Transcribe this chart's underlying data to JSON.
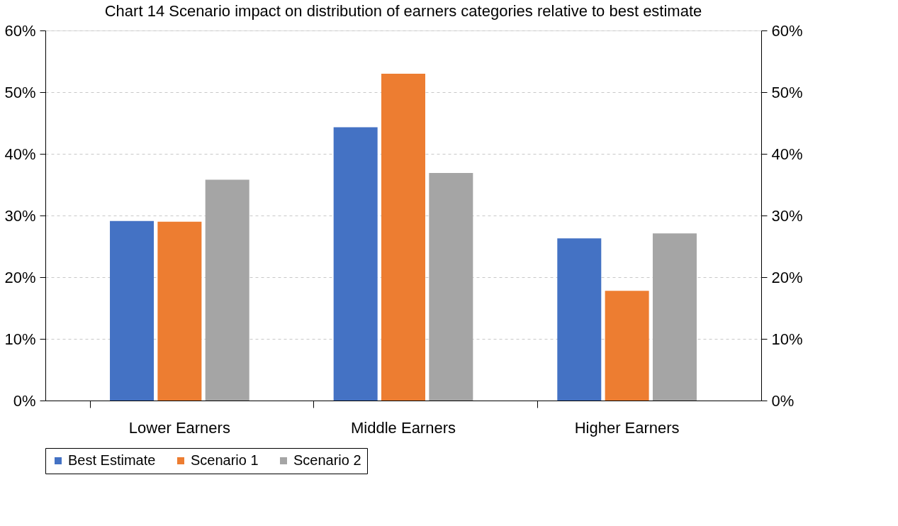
{
  "chart_data": {
    "type": "bar",
    "title": "Chart 14     Scenario impact on distribution of earners categories relative to best estimate",
    "categories": [
      "Lower Earners",
      "Middle Earners",
      "Higher Earners"
    ],
    "series": [
      {
        "name": "Best Estimate",
        "color": "#4472c4",
        "values": [
          29.1,
          44.3,
          26.3
        ]
      },
      {
        "name": "Scenario 1",
        "color": "#ed7d31",
        "values": [
          29.0,
          53.0,
          17.8
        ]
      },
      {
        "name": "Scenario 2",
        "color": "#a5a5a5",
        "values": [
          35.8,
          36.9,
          27.1
        ]
      }
    ],
    "ylim": [
      0,
      60
    ],
    "yticks": [
      {
        "value": 0,
        "label": "0%"
      },
      {
        "value": 10,
        "label": "10%"
      },
      {
        "value": 20,
        "label": "20%"
      },
      {
        "value": 30,
        "label": "30%"
      },
      {
        "value": 40,
        "label": "40%"
      },
      {
        "value": 50,
        "label": "50%"
      },
      {
        "value": 60,
        "label": "60%"
      }
    ],
    "y2lim": [
      0,
      60
    ],
    "y2ticks": [
      {
        "value": 0,
        "label": "0%"
      },
      {
        "value": 10,
        "label": "10%"
      },
      {
        "value": 20,
        "label": "20%"
      },
      {
        "value": 30,
        "label": "30%"
      },
      {
        "value": 40,
        "label": "40%"
      },
      {
        "value": 50,
        "label": "50%"
      },
      {
        "value": 60,
        "label": "60%"
      }
    ],
    "grid": "y",
    "legend": "bottom"
  }
}
